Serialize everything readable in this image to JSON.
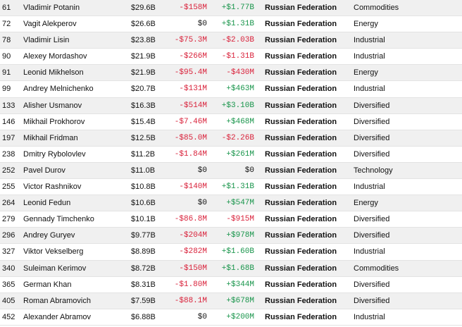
{
  "colors": {
    "negative": "#d9213a",
    "positive": "#17944a",
    "neutral": "#111111",
    "row_shade": "#f0f0f0"
  },
  "rows": [
    {
      "rank": "61",
      "name": "Vladimir Potanin",
      "net_worth": "$29.6B",
      "last_change": "-$158M",
      "ytd_change": "+$1.77B",
      "country": "Russian Federation",
      "industry": "Commodities"
    },
    {
      "rank": "72",
      "name": "Vagit Alekperov",
      "net_worth": "$26.6B",
      "last_change": "$0",
      "ytd_change": "+$1.31B",
      "country": "Russian Federation",
      "industry": "Energy"
    },
    {
      "rank": "78",
      "name": "Vladimir Lisin",
      "net_worth": "$23.8B",
      "last_change": "-$75.3M",
      "ytd_change": "-$2.03B",
      "country": "Russian Federation",
      "industry": "Industrial"
    },
    {
      "rank": "90",
      "name": "Alexey Mordashov",
      "net_worth": "$21.9B",
      "last_change": "-$266M",
      "ytd_change": "-$1.31B",
      "country": "Russian Federation",
      "industry": "Industrial"
    },
    {
      "rank": "91",
      "name": "Leonid Mikhelson",
      "net_worth": "$21.9B",
      "last_change": "-$95.4M",
      "ytd_change": "-$430M",
      "country": "Russian Federation",
      "industry": "Energy"
    },
    {
      "rank": "99",
      "name": "Andrey Melnichenko",
      "net_worth": "$20.7B",
      "last_change": "-$131M",
      "ytd_change": "+$463M",
      "country": "Russian Federation",
      "industry": "Industrial"
    },
    {
      "rank": "133",
      "name": "Alisher Usmanov",
      "net_worth": "$16.3B",
      "last_change": "-$514M",
      "ytd_change": "+$3.10B",
      "country": "Russian Federation",
      "industry": "Diversified"
    },
    {
      "rank": "146",
      "name": "Mikhail Prokhorov",
      "net_worth": "$15.4B",
      "last_change": "-$7.46M",
      "ytd_change": "+$468M",
      "country": "Russian Federation",
      "industry": "Diversified"
    },
    {
      "rank": "197",
      "name": "Mikhail Fridman",
      "net_worth": "$12.5B",
      "last_change": "-$85.0M",
      "ytd_change": "-$2.26B",
      "country": "Russian Federation",
      "industry": "Diversified"
    },
    {
      "rank": "238",
      "name": "Dmitry Rybolovlev",
      "net_worth": "$11.2B",
      "last_change": "-$1.84M",
      "ytd_change": "+$261M",
      "country": "Russian Federation",
      "industry": "Diversified"
    },
    {
      "rank": "252",
      "name": "Pavel Durov",
      "net_worth": "$11.0B",
      "last_change": "$0",
      "ytd_change": "$0",
      "country": "Russian Federation",
      "industry": "Technology"
    },
    {
      "rank": "255",
      "name": "Victor Rashnikov",
      "net_worth": "$10.8B",
      "last_change": "-$140M",
      "ytd_change": "+$1.31B",
      "country": "Russian Federation",
      "industry": "Industrial"
    },
    {
      "rank": "264",
      "name": "Leonid Fedun",
      "net_worth": "$10.6B",
      "last_change": "$0",
      "ytd_change": "+$547M",
      "country": "Russian Federation",
      "industry": "Energy"
    },
    {
      "rank": "279",
      "name": "Gennady Timchenko",
      "net_worth": "$10.1B",
      "last_change": "-$86.8M",
      "ytd_change": "-$915M",
      "country": "Russian Federation",
      "industry": "Diversified"
    },
    {
      "rank": "296",
      "name": "Andrey Guryev",
      "net_worth": "$9.77B",
      "last_change": "-$204M",
      "ytd_change": "+$978M",
      "country": "Russian Federation",
      "industry": "Diversified"
    },
    {
      "rank": "327",
      "name": "Viktor Vekselberg",
      "net_worth": "$8.89B",
      "last_change": "-$282M",
      "ytd_change": "+$1.60B",
      "country": "Russian Federation",
      "industry": "Industrial"
    },
    {
      "rank": "340",
      "name": "Suleiman Kerimov",
      "net_worth": "$8.72B",
      "last_change": "-$150M",
      "ytd_change": "+$1.68B",
      "country": "Russian Federation",
      "industry": "Commodities"
    },
    {
      "rank": "365",
      "name": "German Khan",
      "net_worth": "$8.31B",
      "last_change": "-$1.80M",
      "ytd_change": "+$344M",
      "country": "Russian Federation",
      "industry": "Diversified"
    },
    {
      "rank": "405",
      "name": "Roman Abramovich",
      "net_worth": "$7.59B",
      "last_change": "-$88.1M",
      "ytd_change": "+$678M",
      "country": "Russian Federation",
      "industry": "Diversified"
    },
    {
      "rank": "452",
      "name": "Alexander Abramov",
      "net_worth": "$6.88B",
      "last_change": "$0",
      "ytd_change": "+$200M",
      "country": "Russian Federation",
      "industry": "Industrial"
    }
  ]
}
